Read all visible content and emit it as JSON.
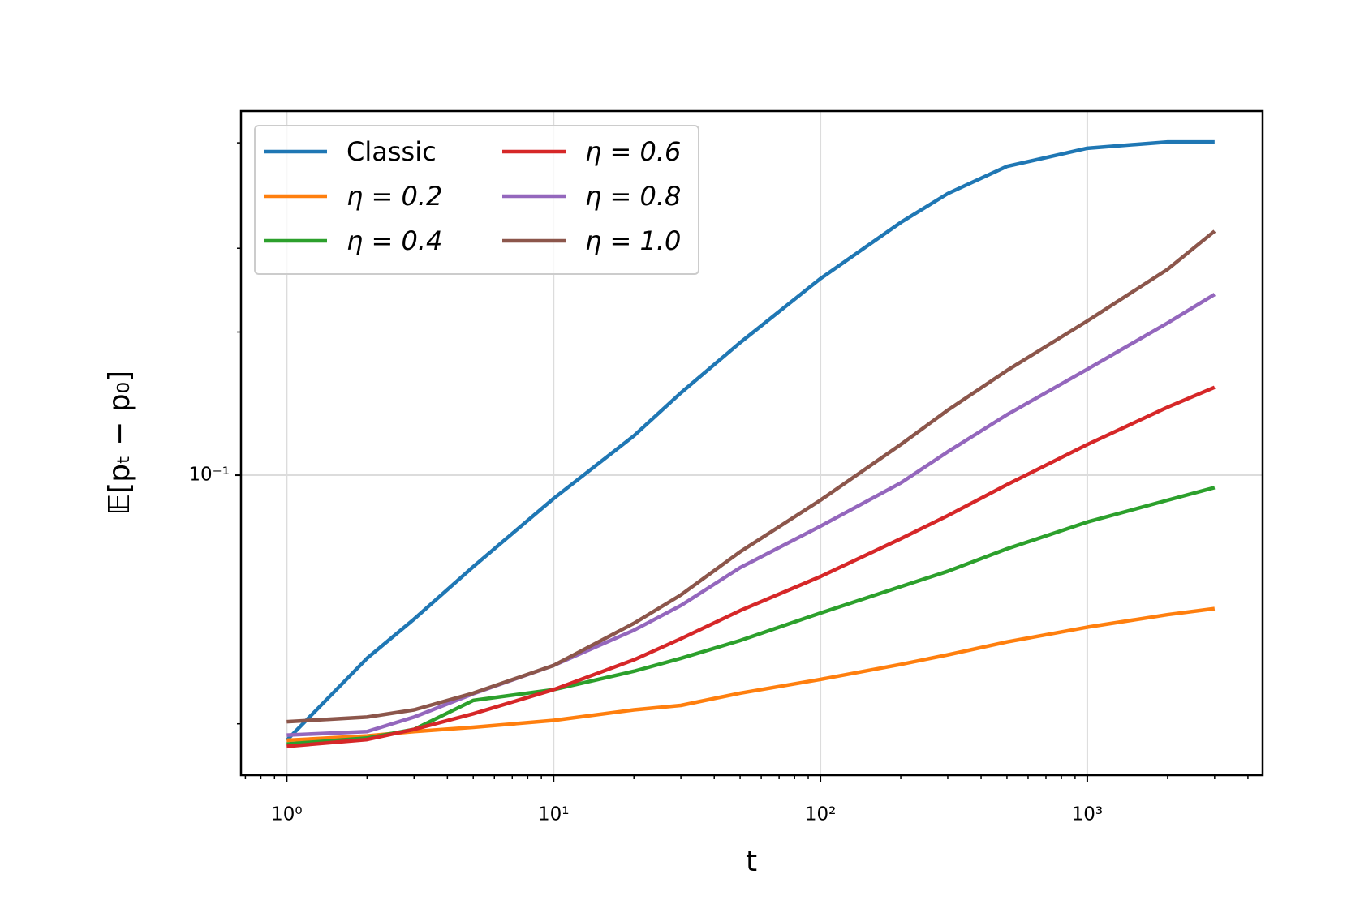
{
  "chart_data": {
    "type": "line",
    "xlabel": "t",
    "ylabel": "𝔼[pₜ − p₀]",
    "log_x": true,
    "log_y": true,
    "grid": true,
    "legend": "upper left",
    "x": [
      1,
      2,
      3,
      5,
      10,
      20,
      30,
      50,
      100,
      200,
      300,
      500,
      1000,
      2000,
      3000
    ],
    "series": [
      {
        "name": "Classic",
        "color": "#1f77b4",
        "values": [
          0.0277,
          0.0412,
          0.0498,
          0.0642,
          0.0893,
          0.121,
          0.149,
          0.19,
          0.259,
          0.34,
          0.391,
          0.446,
          0.487,
          0.502,
          0.502
        ]
      },
      {
        "name": "η = 0.2",
        "color": "#ff7f0e",
        "values": [
          0.0277,
          0.0283,
          0.0289,
          0.0295,
          0.0305,
          0.0321,
          0.0328,
          0.0348,
          0.0372,
          0.04,
          0.0419,
          0.0446,
          0.0479,
          0.0509,
          0.0524
        ]
      },
      {
        "name": "η = 0.4",
        "color": "#2ca02c",
        "values": [
          0.0272,
          0.028,
          0.0292,
          0.0336,
          0.0354,
          0.0387,
          0.0412,
          0.0449,
          0.0513,
          0.0583,
          0.0628,
          0.07,
          0.0797,
          0.0886,
          0.0942
        ]
      },
      {
        "name": "η = 0.6",
        "color": "#d62728",
        "values": [
          0.0269,
          0.0278,
          0.0292,
          0.0315,
          0.0354,
          0.0409,
          0.0453,
          0.0519,
          0.0612,
          0.0735,
          0.0822,
          0.0955,
          0.116,
          0.139,
          0.153
        ]
      },
      {
        "name": "η = 0.8",
        "color": "#9467bd",
        "values": [
          0.0284,
          0.0289,
          0.031,
          0.0347,
          0.0398,
          0.0472,
          0.0532,
          0.0639,
          0.0781,
          0.0963,
          0.112,
          0.134,
          0.167,
          0.209,
          0.24
        ]
      },
      {
        "name": "η = 1.0",
        "color": "#8c564b",
        "values": [
          0.0303,
          0.031,
          0.0321,
          0.0348,
          0.0398,
          0.0488,
          0.056,
          0.069,
          0.0886,
          0.116,
          0.137,
          0.166,
          0.211,
          0.271,
          0.326
        ]
      }
    ],
    "xlim": [
      0.674,
      4540
    ],
    "ylim": [
      0.0234,
      0.583
    ],
    "xticks": [
      {
        "value": 1,
        "label": "10⁰"
      },
      {
        "value": 10,
        "label": "10¹"
      },
      {
        "value": 100,
        "label": "10²"
      },
      {
        "value": 1000,
        "label": "10³"
      }
    ],
    "xminor_ticks": [
      0.7,
      0.8,
      0.9,
      2,
      3,
      4,
      5,
      6,
      7,
      8,
      9,
      20,
      30,
      40,
      50,
      60,
      70,
      80,
      90,
      200,
      300,
      400,
      500,
      600,
      700,
      800,
      900,
      2000,
      3000,
      4000
    ],
    "yticks": [
      {
        "value": 0.1,
        "label": "10⁻¹"
      }
    ],
    "yminor_ticks": [
      0.03,
      0.2,
      0.3,
      0.5
    ]
  }
}
